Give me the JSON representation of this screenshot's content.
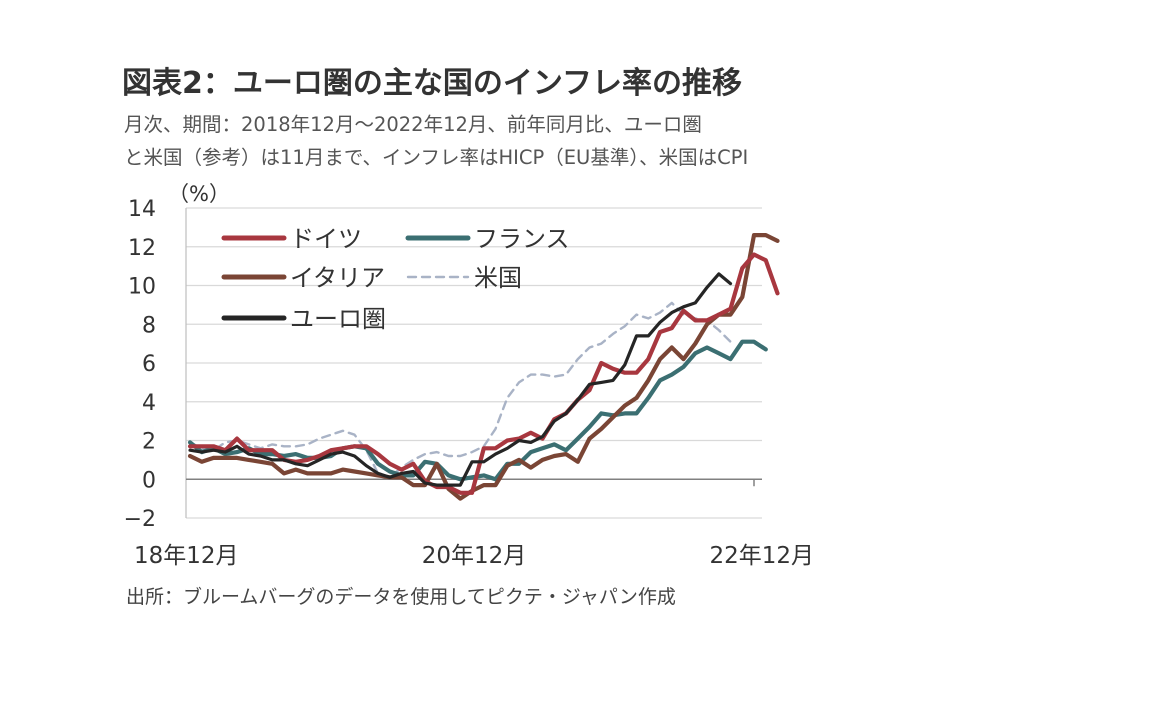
{
  "title": "図表2：ユーロ圏の主な国のインフレ率の推移",
  "subtitle_line1": "月次、期間：2018年12月～2022年12月、前年同月比、ユーロ圏",
  "subtitle_line2": "と米国（参考）は11月まで、インフレ率はHICP（EU基準）、米国はCPI",
  "source": "出所：ブルームバーグのデータを使用してピクテ・ジャパン作成",
  "chart_data": {
    "type": "line",
    "title": "",
    "ylabel": "（%）",
    "xlabel": "",
    "ylim": [
      -2,
      14
    ],
    "yticks": [
      -2,
      0,
      2,
      4,
      6,
      8,
      10,
      12,
      14
    ],
    "xlim": [
      0,
      48
    ],
    "x_start": "2018-12",
    "x_end": "2022-12",
    "x_ticks": [
      {
        "month": 0,
        "label": "18年12月"
      },
      {
        "month": 24,
        "label": "20年12月"
      },
      {
        "month": 48,
        "label": "22年12月"
      }
    ],
    "grid": "horizontal",
    "legend": "top-left",
    "series": [
      {
        "name": "ドイツ",
        "color": "#a8373f",
        "dash": "solid",
        "values": [
          1.7,
          1.7,
          1.7,
          1.5,
          2.1,
          1.5,
          1.5,
          1.5,
          1.0,
          0.9,
          1.0,
          1.2,
          1.5,
          1.6,
          1.7,
          1.7,
          1.3,
          0.8,
          0.5,
          0.8,
          -0.1,
          -0.4,
          -0.4,
          -0.7,
          -0.7,
          1.6,
          1.6,
          2.0,
          2.1,
          2.4,
          2.1,
          3.1,
          3.4,
          4.1,
          4.6,
          6.0,
          5.7,
          5.5,
          5.5,
          6.2,
          7.6,
          7.8,
          8.7,
          8.2,
          8.2,
          8.5,
          8.8,
          10.9,
          11.6,
          11.3,
          9.6
        ]
      },
      {
        "name": "フランス",
        "color": "#3b6f72",
        "dash": "solid",
        "values": [
          1.9,
          1.4,
          1.6,
          1.3,
          1.4,
          1.6,
          1.3,
          1.3,
          1.2,
          1.3,
          1.1,
          1.1,
          1.2,
          1.6,
          1.7,
          1.6,
          0.8,
          0.4,
          0.2,
          0.2,
          0.9,
          0.8,
          0.2,
          0.0,
          0.1,
          0.2,
          0.0,
          0.8,
          0.8,
          1.4,
          1.6,
          1.8,
          1.5,
          2.1,
          2.7,
          3.4,
          3.3,
          3.4,
          3.4,
          4.2,
          5.1,
          5.4,
          5.8,
          6.5,
          6.8,
          6.5,
          6.2,
          7.1,
          7.1,
          6.7
        ]
      },
      {
        "name": "イタリア",
        "color": "#7a4535",
        "dash": "solid",
        "values": [
          1.2,
          0.9,
          1.1,
          1.1,
          1.1,
          1.0,
          0.9,
          0.8,
          0.3,
          0.5,
          0.3,
          0.3,
          0.3,
          0.5,
          0.4,
          0.3,
          0.2,
          0.1,
          0.1,
          -0.3,
          -0.3,
          0.8,
          -0.5,
          -1.0,
          -0.6,
          -0.3,
          -0.3,
          0.7,
          1.0,
          0.6,
          1.0,
          1.2,
          1.3,
          0.9,
          2.1,
          2.6,
          3.2,
          3.8,
          4.2,
          5.1,
          6.2,
          6.8,
          6.2,
          7.0,
          8.0,
          8.5,
          8.5,
          9.4,
          12.6,
          12.6,
          12.3
        ]
      },
      {
        "name": "米国",
        "color": "#a9b3c6",
        "dash": "dashed",
        "values": [
          1.9,
          1.6,
          1.5,
          1.9,
          2.0,
          1.8,
          1.6,
          1.8,
          1.7,
          1.7,
          1.8,
          2.1,
          2.3,
          2.5,
          2.3,
          1.5,
          0.3,
          0.1,
          0.6,
          1.0,
          1.3,
          1.4,
          1.2,
          1.2,
          1.4,
          1.7,
          2.6,
          4.2,
          5.0,
          5.4,
          5.4,
          5.3,
          5.4,
          6.2,
          6.8,
          7.0,
          7.5,
          7.9,
          8.5,
          8.3,
          8.6,
          9.1,
          8.5,
          8.3,
          8.2,
          7.7,
          7.1
        ]
      },
      {
        "name": "ユーロ圏",
        "color": "#252525",
        "dash": "solid",
        "values": [
          1.5,
          1.4,
          1.5,
          1.4,
          1.7,
          1.3,
          1.2,
          1.0,
          1.0,
          0.8,
          0.7,
          1.0,
          1.3,
          1.4,
          1.2,
          0.7,
          0.3,
          0.1,
          0.3,
          0.4,
          -0.2,
          -0.3,
          -0.3,
          -0.3,
          0.9,
          0.9,
          1.3,
          1.6,
          2.0,
          1.9,
          2.2,
          3.0,
          3.4,
          4.1,
          4.9,
          5.0,
          5.1,
          5.9,
          7.4,
          7.4,
          8.1,
          8.6,
          8.9,
          9.1,
          9.9,
          10.6,
          10.1
        ]
      }
    ]
  }
}
